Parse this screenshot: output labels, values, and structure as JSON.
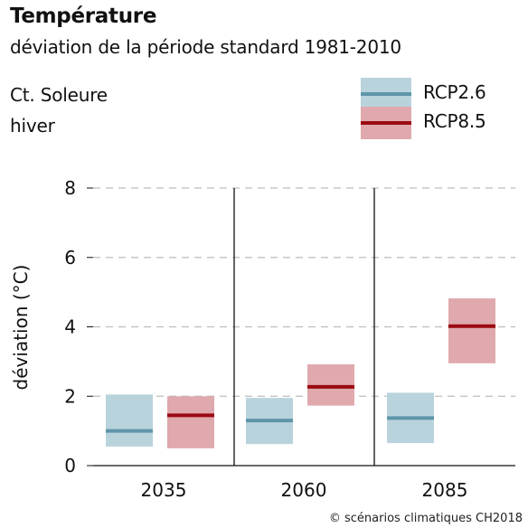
{
  "header": {
    "title": "Température",
    "subtitle": "déviation de la période standard 1981-2010",
    "region": "Ct. Soleure",
    "season": "hiver"
  },
  "credit": "© scénarios climatiques CH2018",
  "colors": {
    "rcp26_band": "#b9d3dc",
    "rcp26_line": "#5e95aa",
    "rcp85_band": "#dfa9ad",
    "rcp85_line": "#9c0a12",
    "grid": "#bdbdbd",
    "axis": "#111111"
  },
  "chart_data": {
    "type": "bar",
    "title": "Température",
    "subtitle": "déviation de la période standard 1981-2010",
    "xlabel": "",
    "ylabel": "déviation (°C)",
    "ylim": [
      0,
      8
    ],
    "yticks": [
      0,
      2,
      4,
      6,
      8
    ],
    "grid": true,
    "legend": "top-right",
    "categories": [
      "2035",
      "2060",
      "2085"
    ],
    "series": [
      {
        "name": "RCP2.6",
        "values": [
          {
            "low": 0.55,
            "median": 1.0,
            "high": 2.05
          },
          {
            "low": 0.62,
            "median": 1.3,
            "high": 1.95
          },
          {
            "low": 0.65,
            "median": 1.37,
            "high": 2.1
          }
        ]
      },
      {
        "name": "RCP8.5",
        "values": [
          {
            "low": 0.5,
            "median": 1.45,
            "high": 2.0
          },
          {
            "low": 1.73,
            "median": 2.27,
            "high": 2.92
          },
          {
            "low": 2.95,
            "median": 4.02,
            "high": 4.82
          }
        ]
      }
    ]
  }
}
